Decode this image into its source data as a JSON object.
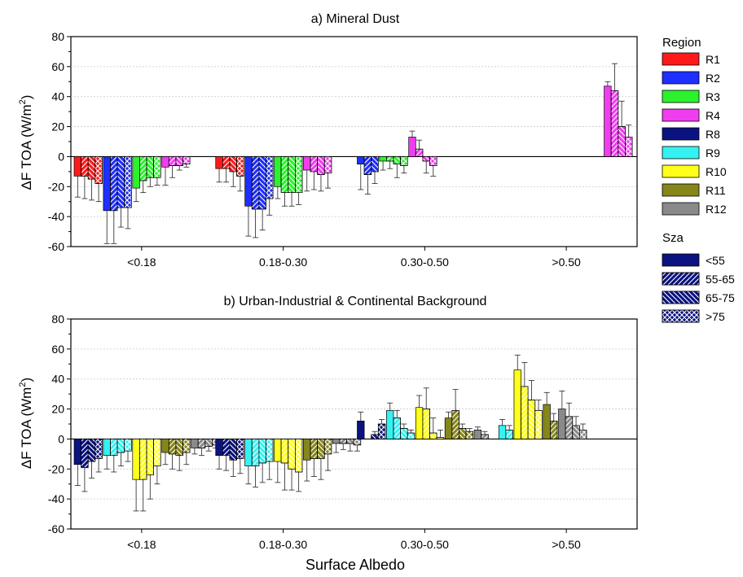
{
  "figure": {
    "xlabel": "Surface Albedo",
    "legend_region_title": "Region",
    "legend_sza_title": "Sza"
  },
  "colors": {
    "R1": "#ff1a1a",
    "R2": "#1f2fff",
    "R3": "#2cf22c",
    "R4": "#f03df0",
    "R8": "#0b1380",
    "R9": "#35f2f2",
    "R10": "#ffff1a",
    "R11": "#86861a",
    "R12": "#8a8a8a"
  },
  "legend_regions": [
    {
      "label": "R1",
      "key": "R1"
    },
    {
      "label": "R2",
      "key": "R2"
    },
    {
      "label": "R3",
      "key": "R3"
    },
    {
      "label": "R4",
      "key": "R4"
    },
    {
      "label": "R8",
      "key": "R8"
    },
    {
      "label": "R9",
      "key": "R9"
    },
    {
      "label": "R10",
      "key": "R10"
    },
    {
      "label": "R11",
      "key": "R11"
    },
    {
      "label": "R12",
      "key": "R12"
    }
  ],
  "legend_sza": [
    {
      "label": "<55",
      "pattern": "solid"
    },
    {
      "label": "55-65",
      "pattern": "fwd"
    },
    {
      "label": "65-75",
      "pattern": "back"
    },
    {
      "label": ">75",
      "pattern": "cross"
    }
  ],
  "chart_data": [
    {
      "type": "bar",
      "title": "a) Mineral Dust",
      "ylabel_prefix": "ΔF TOA (W/m",
      "ylabel_sup": "2",
      "ylabel_suffix": ")",
      "ylim": [
        -60,
        80
      ],
      "yticks": [
        -60,
        -40,
        -20,
        0,
        20,
        40,
        60,
        80
      ],
      "categories": [
        "<0.18",
        "0.18-0.30",
        "0.30-0.50",
        ">0.50"
      ],
      "sza_classes": [
        "<55",
        "55-65",
        "65-75",
        ">75"
      ],
      "groups": [
        {
          "category": "<0.18",
          "regions": [
            {
              "region": "R1",
              "values": [
                -13,
                -13,
                -15,
                -18
              ],
              "errors": [
                14,
                15,
                14,
                12
              ]
            },
            {
              "region": "R2",
              "values": [
                -36,
                -36,
                -34,
                -34
              ],
              "errors": [
                22,
                22,
                13,
                14
              ]
            },
            {
              "region": "R3",
              "values": [
                -21,
                -16,
                -14,
                -14
              ],
              "errors": [
                9,
                8,
                6,
                5
              ]
            },
            {
              "region": "R4",
              "values": [
                -7,
                -6,
                -6,
                -5
              ],
              "errors": [
                12,
                8,
                3,
                2
              ]
            }
          ]
        },
        {
          "category": "0.18-0.30",
          "regions": [
            {
              "region": "R1",
              "values": [
                -8,
                -8,
                -10,
                -13
              ],
              "errors": [
                9,
                9,
                10,
                10
              ]
            },
            {
              "region": "R2",
              "values": [
                -33,
                -35,
                -35,
                -28
              ],
              "errors": [
                20,
                19,
                14,
                11
              ]
            },
            {
              "region": "R3",
              "values": [
                -20,
                -24,
                -24,
                -24
              ],
              "errors": [
                8,
                9,
                9,
                8
              ]
            },
            {
              "region": "R4",
              "values": [
                -9,
                -10,
                -12,
                -11
              ],
              "errors": [
                14,
                12,
                11,
                10
              ]
            }
          ]
        },
        {
          "category": "0.30-0.50",
          "regions": [
            {
              "region": "R2",
              "values": [
                -5,
                -12,
                -10
              ],
              "errors": [
                17,
                13,
                8
              ]
            },
            {
              "region": "R3",
              "values": [
                -3,
                -3,
                -5,
                -6
              ],
              "errors": [
                6,
                5,
                9,
                5
              ]
            },
            {
              "region": "R4",
              "values": [
                13,
                5,
                -3,
                -6
              ],
              "errors": [
                4,
                6,
                8,
                7
              ]
            }
          ]
        },
        {
          "category": ">0.50",
          "regions": [
            {
              "region": "R4",
              "values": [
                47,
                44,
                20,
                13
              ],
              "errors": [
                3,
                18,
                17,
                8
              ]
            }
          ]
        }
      ]
    },
    {
      "type": "bar",
      "title": "b) Urban-Industrial & Continental Background",
      "ylabel_prefix": "ΔF TOA  (Wm",
      "ylabel_sup": "2",
      "ylabel_suffix": ")",
      "ylim": [
        -60,
        80
      ],
      "yticks": [
        -60,
        -40,
        -20,
        0,
        20,
        40,
        60,
        80
      ],
      "categories": [
        "<0.18",
        "0.18-0.30",
        "0.30-0.50",
        ">0.50"
      ],
      "sza_classes": [
        "<55",
        "55-65",
        "65-75",
        ">75"
      ],
      "groups": [
        {
          "category": "<0.18",
          "regions": [
            {
              "region": "R8",
              "values": [
                -17,
                -19,
                -15,
                -13
              ],
              "errors": [
                14,
                16,
                11,
                9
              ]
            },
            {
              "region": "R9",
              "values": [
                -11,
                -11,
                -9,
                -8
              ],
              "errors": [
                9,
                11,
                9,
                7
              ]
            },
            {
              "region": "R10",
              "values": [
                -27,
                -27,
                -24,
                -18
              ],
              "errors": [
                21,
                21,
                16,
                12
              ]
            },
            {
              "region": "R11",
              "values": [
                -9,
                -10,
                -11,
                -9
              ],
              "errors": [
                8,
                10,
                10,
                8
              ]
            },
            {
              "region": "R12",
              "values": [
                -6,
                -6,
                -5,
                -4
              ],
              "errors": [
                4,
                5,
                3,
                2
              ]
            }
          ]
        },
        {
          "category": "0.18-0.30",
          "regions": [
            {
              "region": "R8",
              "values": [
                -11,
                -11,
                -14,
                -13
              ],
              "errors": [
                9,
                10,
                11,
                10
              ]
            },
            {
              "region": "R9",
              "values": [
                -18,
                -18,
                -16,
                -15
              ],
              "errors": [
                12,
                14,
                13,
                12
              ]
            },
            {
              "region": "R10",
              "values": [
                -15,
                -16,
                -20,
                -22
              ],
              "errors": [
                14,
                18,
                14,
                13
              ]
            },
            {
              "region": "R11",
              "values": [
                -14,
                -13,
                -13,
                -10
              ],
              "errors": [
                14,
                12,
                14,
                11
              ]
            },
            {
              "region": "R12",
              "values": [
                -3,
                -3,
                -3,
                -4
              ],
              "errors": [
                6,
                4,
                5,
                4
              ]
            }
          ]
        },
        {
          "category": "0.30-0.50",
          "regions": [
            {
              "region": "R8",
              "values": [
                12,
                null,
                3,
                10
              ],
              "errors": [
                6,
                0,
                2,
                3
              ]
            },
            {
              "region": "R9",
              "values": [
                19,
                14,
                7,
                4
              ],
              "errors": [
                5,
                5,
                3,
                2
              ]
            },
            {
              "region": "R10",
              "values": [
                21,
                20,
                4,
                1
              ],
              "errors": [
                8,
                14,
                10,
                5
              ]
            },
            {
              "region": "R11",
              "values": [
                14,
                19,
                7,
                5
              ],
              "errors": [
                4,
                14,
                3,
                2
              ]
            },
            {
              "region": "R12",
              "values": [
                6,
                3
              ],
              "errors": [
                2,
                2
              ]
            }
          ]
        },
        {
          "category": ">0.50",
          "regions": [
            {
              "region": "R9",
              "values": [
                9,
                6
              ],
              "errors": [
                4,
                3
              ]
            },
            {
              "region": "R10",
              "values": [
                46,
                35,
                26,
                19
              ],
              "errors": [
                10,
                16,
                13,
                7
              ]
            },
            {
              "region": "R11",
              "values": [
                23,
                12
              ],
              "errors": [
                8,
                5
              ]
            },
            {
              "region": "R12",
              "values": [
                20,
                15,
                9,
                6
              ],
              "errors": [
                12,
                9,
                6,
                4
              ]
            }
          ]
        }
      ]
    }
  ]
}
